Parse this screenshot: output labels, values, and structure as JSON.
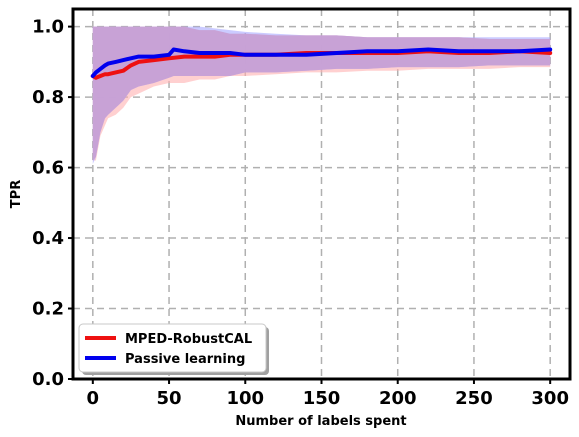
{
  "chart_data": {
    "type": "line",
    "title": "",
    "xlabel": "Number of labels spent",
    "ylabel": "TPR",
    "xlim": [
      -13,
      313
    ],
    "ylim": [
      0,
      1.05
    ],
    "x_ticks": [
      0,
      50,
      100,
      150,
      200,
      250,
      300
    ],
    "x_tick_labels": [
      "0",
      "50",
      "100",
      "150",
      "200",
      "250",
      "300"
    ],
    "y_ticks": [
      0.0,
      0.2,
      0.4,
      0.6,
      0.8,
      1.0
    ],
    "y_tick_labels": [
      "0.0",
      "0.2",
      "0.4",
      "0.6",
      "0.8",
      "1.0"
    ],
    "grid": true,
    "grid_style": "dashed",
    "legend_position": "lower-left",
    "band_overlap_color": "#c8a0d4",
    "series": [
      {
        "name": "MPED-RobustCAL",
        "color": "#ee1111",
        "band_color": "#ffb0b0",
        "x": [
          0,
          2,
          5,
          8,
          10,
          15,
          20,
          25,
          30,
          40,
          50,
          60,
          70,
          80,
          90,
          100,
          120,
          140,
          160,
          180,
          200,
          220,
          240,
          260,
          280,
          300
        ],
        "mean": [
          0.86,
          0.855,
          0.86,
          0.865,
          0.865,
          0.87,
          0.875,
          0.89,
          0.9,
          0.905,
          0.91,
          0.915,
          0.915,
          0.915,
          0.92,
          0.92,
          0.92,
          0.925,
          0.925,
          0.925,
          0.925,
          0.93,
          0.925,
          0.925,
          0.93,
          0.925
        ],
        "lower": [
          0.62,
          0.62,
          0.69,
          0.72,
          0.74,
          0.75,
          0.77,
          0.8,
          0.81,
          0.83,
          0.84,
          0.84,
          0.85,
          0.85,
          0.86,
          0.86,
          0.865,
          0.87,
          0.87,
          0.875,
          0.875,
          0.88,
          0.88,
          0.88,
          0.885,
          0.885
        ],
        "upper": [
          1.0,
          1.0,
          1.0,
          1.0,
          1.0,
          1.0,
          1.0,
          1.0,
          1.0,
          1.0,
          1.0,
          1.0,
          0.99,
          0.99,
          0.98,
          0.98,
          0.975,
          0.975,
          0.975,
          0.97,
          0.97,
          0.97,
          0.97,
          0.965,
          0.965,
          0.965
        ]
      },
      {
        "name": "Passive learning",
        "color": "#0000ee",
        "band_color": "#a8a8ff",
        "x": [
          0,
          2,
          5,
          8,
          10,
          15,
          20,
          25,
          30,
          40,
          50,
          53,
          60,
          70,
          80,
          90,
          100,
          120,
          140,
          160,
          180,
          200,
          220,
          240,
          260,
          280,
          300
        ],
        "mean": [
          0.86,
          0.87,
          0.88,
          0.89,
          0.895,
          0.9,
          0.905,
          0.91,
          0.915,
          0.915,
          0.92,
          0.935,
          0.93,
          0.925,
          0.925,
          0.925,
          0.92,
          0.92,
          0.92,
          0.925,
          0.93,
          0.93,
          0.935,
          0.93,
          0.93,
          0.93,
          0.935
        ],
        "lower": [
          0.61,
          0.63,
          0.7,
          0.74,
          0.75,
          0.77,
          0.79,
          0.82,
          0.83,
          0.84,
          0.855,
          0.86,
          0.86,
          0.86,
          0.86,
          0.86,
          0.87,
          0.87,
          0.875,
          0.88,
          0.88,
          0.885,
          0.885,
          0.885,
          0.89,
          0.89,
          0.89
        ],
        "upper": [
          1.0,
          1.0,
          1.0,
          1.0,
          1.0,
          1.0,
          1.0,
          1.0,
          1.0,
          1.0,
          1.0,
          1.0,
          1.0,
          1.0,
          0.995,
          0.99,
          0.985,
          0.98,
          0.975,
          0.975,
          0.97,
          0.97,
          0.97,
          0.97,
          0.97,
          0.97,
          0.97
        ]
      }
    ]
  }
}
